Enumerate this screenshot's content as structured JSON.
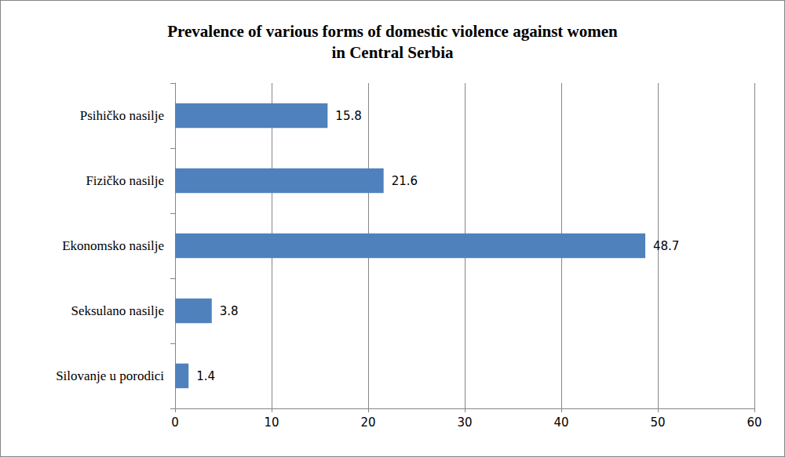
{
  "chart_data": {
    "type": "bar",
    "title": "Prevalence of various forms of domestic violence against women\nin Central Serbia",
    "orientation": "horizontal",
    "categories": [
      "Psihičko nasilje",
      "Fizičko nasilje",
      "Ekonomsko nasilje",
      "Seksulano nasilje",
      "Silovanje u porodici"
    ],
    "values": [
      15.8,
      21.6,
      48.7,
      3.8,
      1.4
    ],
    "color": "#4f81bd",
    "xlim": [
      0,
      60
    ],
    "xticks": [
      0,
      10,
      20,
      30,
      40,
      50,
      60
    ],
    "grid": true,
    "data_labels": true
  }
}
